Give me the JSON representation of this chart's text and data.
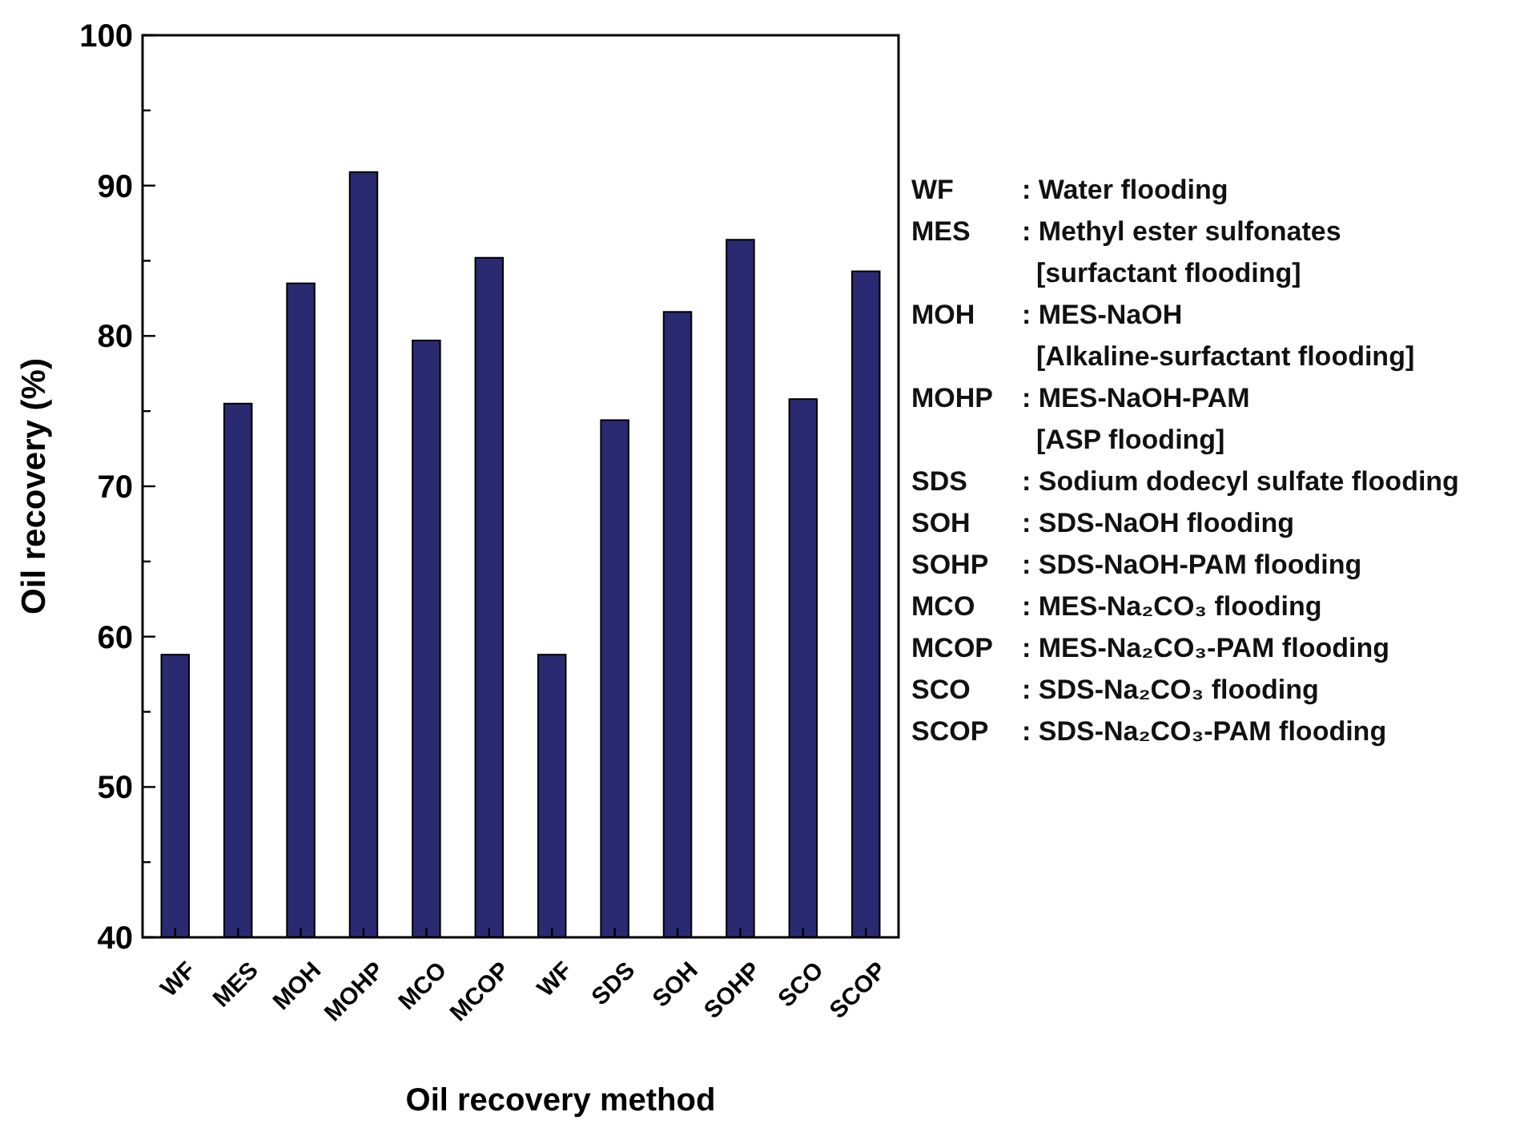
{
  "chart_data": {
    "type": "bar",
    "xlabel": "Oil recovery method",
    "ylabel": "Oil recovery (%)",
    "categories": [
      "WF",
      "MES",
      "MOH",
      "MOHP",
      "MCO",
      "MCOP",
      "WF",
      "SDS",
      "SOH",
      "SOHP",
      "SCO",
      "SCOP"
    ],
    "values": [
      58.8,
      75.5,
      83.5,
      90.9,
      79.7,
      85.2,
      58.8,
      74.4,
      81.6,
      86.4,
      75.8,
      84.3
    ],
    "color": "#2a2a72",
    "ylim": [
      40,
      100
    ],
    "yticks": [
      40,
      {
        "value": 45,
        "label": null
      },
      50,
      {
        "value": 55,
        "label": null
      },
      60,
      {
        "value": 65,
        "label": null
      },
      70,
      {
        "value": 75,
        "label": null
      },
      80,
      {
        "value": 85,
        "label": null
      },
      90,
      {
        "value": 95,
        "label": null
      },
      100
    ],
    "grid": false,
    "annotations": [
      "WF : Water flooding",
      "MES : Methyl ester sulfonates\n[surfactant flooding]",
      "MOH : MES-NaOH\n[Alkaline-surfactant flooding]",
      "MOHP : MES-NaOH-PAM\n[ASP flooding]",
      "SDS : Sodium dodecyl sulfate flooding",
      "SOH : SDS-NaOH flooding",
      "SOHP : SDS-NaOH-PAM flooding",
      "MCO : MES-Na₂CO₃ flooding",
      "MCOP : MES-Na₂CO₃-PAM flooding",
      "SCO : SDS-Na₂CO₃ flooding",
      "SCOP : SDS-Na₂CO₃-PAM flooding"
    ]
  }
}
